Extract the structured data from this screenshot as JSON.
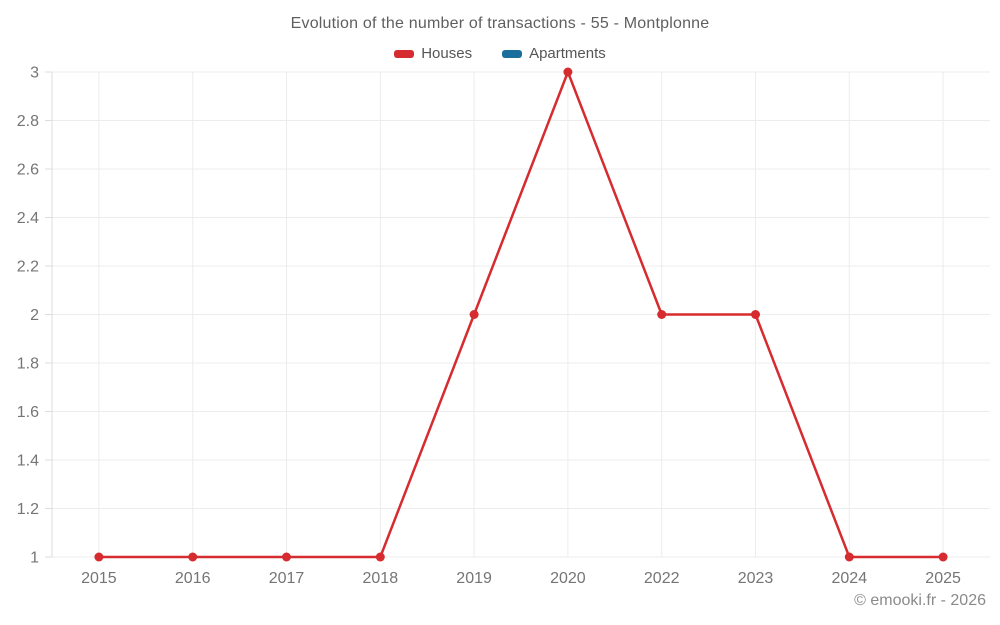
{
  "title": "Evolution of the number of transactions - 55 - Montplonne",
  "footer": "© emooki.fr - 2026",
  "colors": {
    "houses": "#d62b2f",
    "apartments": "#1a6e9b",
    "grid": "#ececec",
    "axis": "#dcdcdc",
    "tick_text": "#757575"
  },
  "chart_data": {
    "type": "line",
    "title": "Evolution of the number of transactions - 55 - Montplonne",
    "categories": [
      "2015",
      "2016",
      "2017",
      "2018",
      "2019",
      "2020",
      "2022",
      "2023",
      "2024",
      "2025"
    ],
    "series": [
      {
        "name": "Houses",
        "color": "#d62b2f",
        "values": [
          1,
          1,
          1,
          1,
          2,
          3,
          2,
          2,
          1,
          1
        ]
      },
      {
        "name": "Apartments",
        "color": "#1a6e9b",
        "values": []
      }
    ],
    "xlabel": "",
    "ylabel": "",
    "ylim": [
      1,
      3
    ],
    "yticks": [
      1,
      1.2,
      1.4,
      1.6,
      1.8,
      2,
      2.2,
      2.4,
      2.6,
      2.8,
      3
    ],
    "grid": true,
    "legend_position": "top",
    "marker": "circle"
  }
}
